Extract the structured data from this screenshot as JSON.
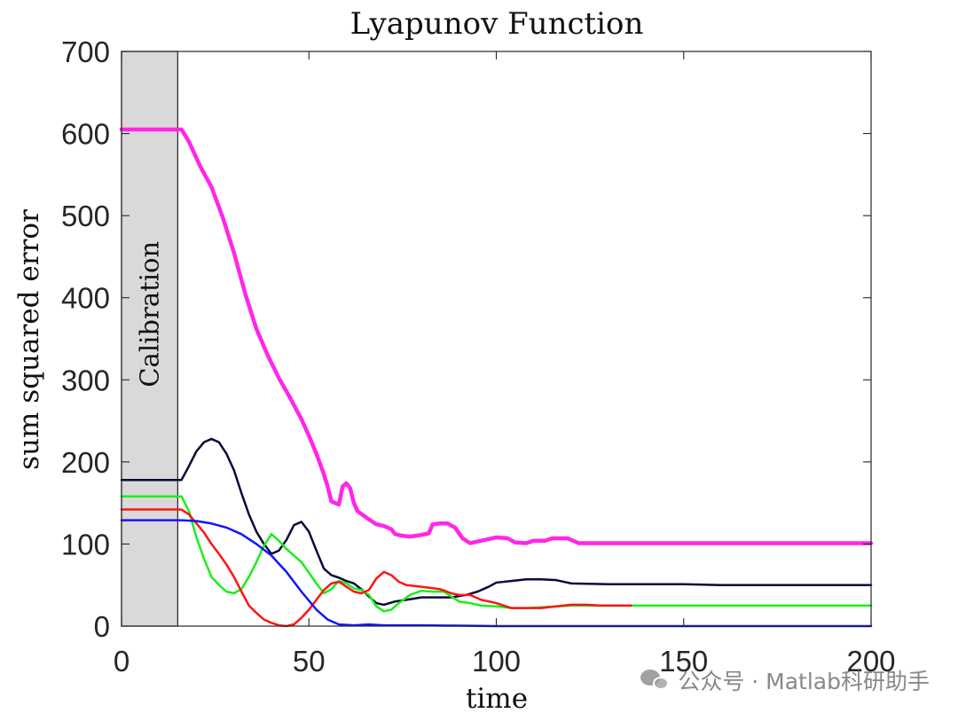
{
  "watermark_text": "公众号 · Matlab科研助手",
  "colors": {
    "magenta": "#ff26ea",
    "navy": "#0a0a3c",
    "green": "#18f018",
    "red": "#ff1414",
    "blue": "#1414ff",
    "calibration_fill": "#d9d9d9"
  },
  "chart_data": {
    "type": "line",
    "title": "Lyapunov Function",
    "xlabel": "time",
    "ylabel": "sum squared error",
    "xlim": [
      0,
      200
    ],
    "ylim": [
      0,
      700
    ],
    "xticks": [
      0,
      50,
      100,
      150,
      200
    ],
    "yticks": [
      0,
      100,
      200,
      300,
      400,
      500,
      600,
      700
    ],
    "grid": false,
    "calibration": {
      "label": "Calibration",
      "x_start": 0,
      "x_end": 15
    },
    "series": [
      {
        "name": "series-magenta",
        "color": "#ff26ea",
        "width": 4.5,
        "points": [
          [
            0,
            605
          ],
          [
            16,
            605
          ],
          [
            18,
            590
          ],
          [
            21,
            560
          ],
          [
            24,
            535
          ],
          [
            27,
            498
          ],
          [
            30,
            455
          ],
          [
            33,
            405
          ],
          [
            36,
            362
          ],
          [
            39,
            330
          ],
          [
            42,
            302
          ],
          [
            45,
            278
          ],
          [
            48,
            252
          ],
          [
            50,
            232
          ],
          [
            52,
            210
          ],
          [
            54,
            185
          ],
          [
            55,
            170
          ],
          [
            56,
            152
          ],
          [
            57,
            150
          ],
          [
            58,
            148
          ],
          [
            59,
            170
          ],
          [
            60,
            174
          ],
          [
            61,
            168
          ],
          [
            62,
            150
          ],
          [
            63,
            140
          ],
          [
            66,
            130
          ],
          [
            68,
            124
          ],
          [
            70,
            122
          ],
          [
            72,
            118
          ],
          [
            73,
            112
          ],
          [
            75,
            110
          ],
          [
            77,
            109
          ],
          [
            80,
            111
          ],
          [
            82,
            113
          ],
          [
            83,
            124
          ],
          [
            85,
            125
          ],
          [
            87,
            125
          ],
          [
            89,
            120
          ],
          [
            91,
            107
          ],
          [
            93,
            101
          ],
          [
            96,
            104
          ],
          [
            100,
            108
          ],
          [
            103,
            107
          ],
          [
            105,
            102
          ],
          [
            108,
            101
          ],
          [
            110,
            104
          ],
          [
            113,
            104
          ],
          [
            115,
            107
          ],
          [
            119,
            107
          ],
          [
            122,
            101
          ],
          [
            200,
            101
          ]
        ]
      },
      {
        "name": "series-navy",
        "color": "#0a0a3c",
        "width": 2.5,
        "points": [
          [
            0,
            178
          ],
          [
            16,
            178
          ],
          [
            18,
            195
          ],
          [
            20,
            213
          ],
          [
            22,
            224
          ],
          [
            24,
            228
          ],
          [
            26,
            224
          ],
          [
            28,
            210
          ],
          [
            30,
            190
          ],
          [
            32,
            162
          ],
          [
            34,
            136
          ],
          [
            36,
            115
          ],
          [
            38,
            100
          ],
          [
            40,
            88
          ],
          [
            42,
            92
          ],
          [
            44,
            105
          ],
          [
            46,
            123
          ],
          [
            48,
            127
          ],
          [
            50,
            115
          ],
          [
            52,
            92
          ],
          [
            54,
            70
          ],
          [
            56,
            62
          ],
          [
            58,
            59
          ],
          [
            60,
            55
          ],
          [
            62,
            52
          ],
          [
            64,
            45
          ],
          [
            66,
            36
          ],
          [
            68,
            28
          ],
          [
            70,
            26
          ],
          [
            73,
            30
          ],
          [
            76,
            32
          ],
          [
            80,
            35
          ],
          [
            83,
            35
          ],
          [
            86,
            35
          ],
          [
            88,
            35
          ],
          [
            92,
            38
          ],
          [
            95,
            42
          ],
          [
            98,
            48
          ],
          [
            100,
            53
          ],
          [
            104,
            55
          ],
          [
            108,
            57
          ],
          [
            112,
            57
          ],
          [
            116,
            56
          ],
          [
            120,
            52
          ],
          [
            130,
            51
          ],
          [
            140,
            51
          ],
          [
            150,
            51
          ],
          [
            160,
            50
          ],
          [
            180,
            50
          ],
          [
            200,
            50
          ]
        ]
      },
      {
        "name": "series-green",
        "color": "#18f018",
        "width": 2.5,
        "points": [
          [
            0,
            158
          ],
          [
            16,
            158
          ],
          [
            18,
            140
          ],
          [
            20,
            108
          ],
          [
            22,
            82
          ],
          [
            24,
            60
          ],
          [
            26,
            50
          ],
          [
            28,
            42
          ],
          [
            30,
            40
          ],
          [
            32,
            45
          ],
          [
            34,
            60
          ],
          [
            36,
            78
          ],
          [
            38,
            98
          ],
          [
            40,
            112
          ],
          [
            42,
            104
          ],
          [
            44,
            94
          ],
          [
            46,
            86
          ],
          [
            48,
            78
          ],
          [
            50,
            65
          ],
          [
            52,
            52
          ],
          [
            54,
            40
          ],
          [
            56,
            45
          ],
          [
            58,
            55
          ],
          [
            60,
            52
          ],
          [
            62,
            46
          ],
          [
            64,
            44
          ],
          [
            66,
            38
          ],
          [
            68,
            24
          ],
          [
            70,
            18
          ],
          [
            72,
            20
          ],
          [
            74,
            28
          ],
          [
            77,
            38
          ],
          [
            80,
            43
          ],
          [
            83,
            42
          ],
          [
            86,
            42
          ],
          [
            88,
            36
          ],
          [
            90,
            30
          ],
          [
            93,
            28
          ],
          [
            96,
            25
          ],
          [
            100,
            24
          ],
          [
            104,
            22
          ],
          [
            108,
            22
          ],
          [
            112,
            23
          ],
          [
            120,
            25
          ],
          [
            130,
            25
          ],
          [
            150,
            25
          ],
          [
            170,
            25
          ],
          [
            200,
            25
          ]
        ]
      },
      {
        "name": "series-red",
        "color": "#ff1414",
        "width": 2.5,
        "points": [
          [
            0,
            142
          ],
          [
            16,
            142
          ],
          [
            18,
            136
          ],
          [
            20,
            125
          ],
          [
            22,
            114
          ],
          [
            24,
            100
          ],
          [
            26,
            88
          ],
          [
            28,
            75
          ],
          [
            30,
            60
          ],
          [
            32,
            42
          ],
          [
            34,
            25
          ],
          [
            36,
            16
          ],
          [
            38,
            8
          ],
          [
            40,
            4
          ],
          [
            42,
            1
          ],
          [
            44,
            0
          ],
          [
            46,
            2
          ],
          [
            48,
            10
          ],
          [
            50,
            20
          ],
          [
            52,
            32
          ],
          [
            54,
            44
          ],
          [
            56,
            52
          ],
          [
            58,
            54
          ],
          [
            60,
            48
          ],
          [
            62,
            42
          ],
          [
            64,
            40
          ],
          [
            66,
            44
          ],
          [
            68,
            58
          ],
          [
            70,
            66
          ],
          [
            72,
            62
          ],
          [
            74,
            54
          ],
          [
            76,
            50
          ],
          [
            80,
            48
          ],
          [
            85,
            45
          ],
          [
            88,
            40
          ],
          [
            90,
            38
          ],
          [
            93,
            38
          ],
          [
            96,
            32
          ],
          [
            100,
            28
          ],
          [
            104,
            22
          ],
          [
            108,
            22
          ],
          [
            112,
            22
          ],
          [
            116,
            24
          ],
          [
            120,
            26
          ],
          [
            124,
            26
          ],
          [
            128,
            25
          ],
          [
            132,
            25
          ],
          [
            136,
            25
          ]
        ]
      },
      {
        "name": "series-blue",
        "color": "#1414ff",
        "width": 2.5,
        "points": [
          [
            0,
            129
          ],
          [
            16,
            129
          ],
          [
            20,
            128
          ],
          [
            24,
            125
          ],
          [
            28,
            120
          ],
          [
            32,
            112
          ],
          [
            36,
            100
          ],
          [
            40,
            86
          ],
          [
            44,
            66
          ],
          [
            48,
            42
          ],
          [
            52,
            20
          ],
          [
            55,
            8
          ],
          [
            58,
            2
          ],
          [
            62,
            1
          ],
          [
            66,
            2
          ],
          [
            70,
            1
          ],
          [
            80,
            1
          ],
          [
            100,
            0
          ],
          [
            150,
            0
          ],
          [
            200,
            0
          ]
        ]
      }
    ]
  }
}
